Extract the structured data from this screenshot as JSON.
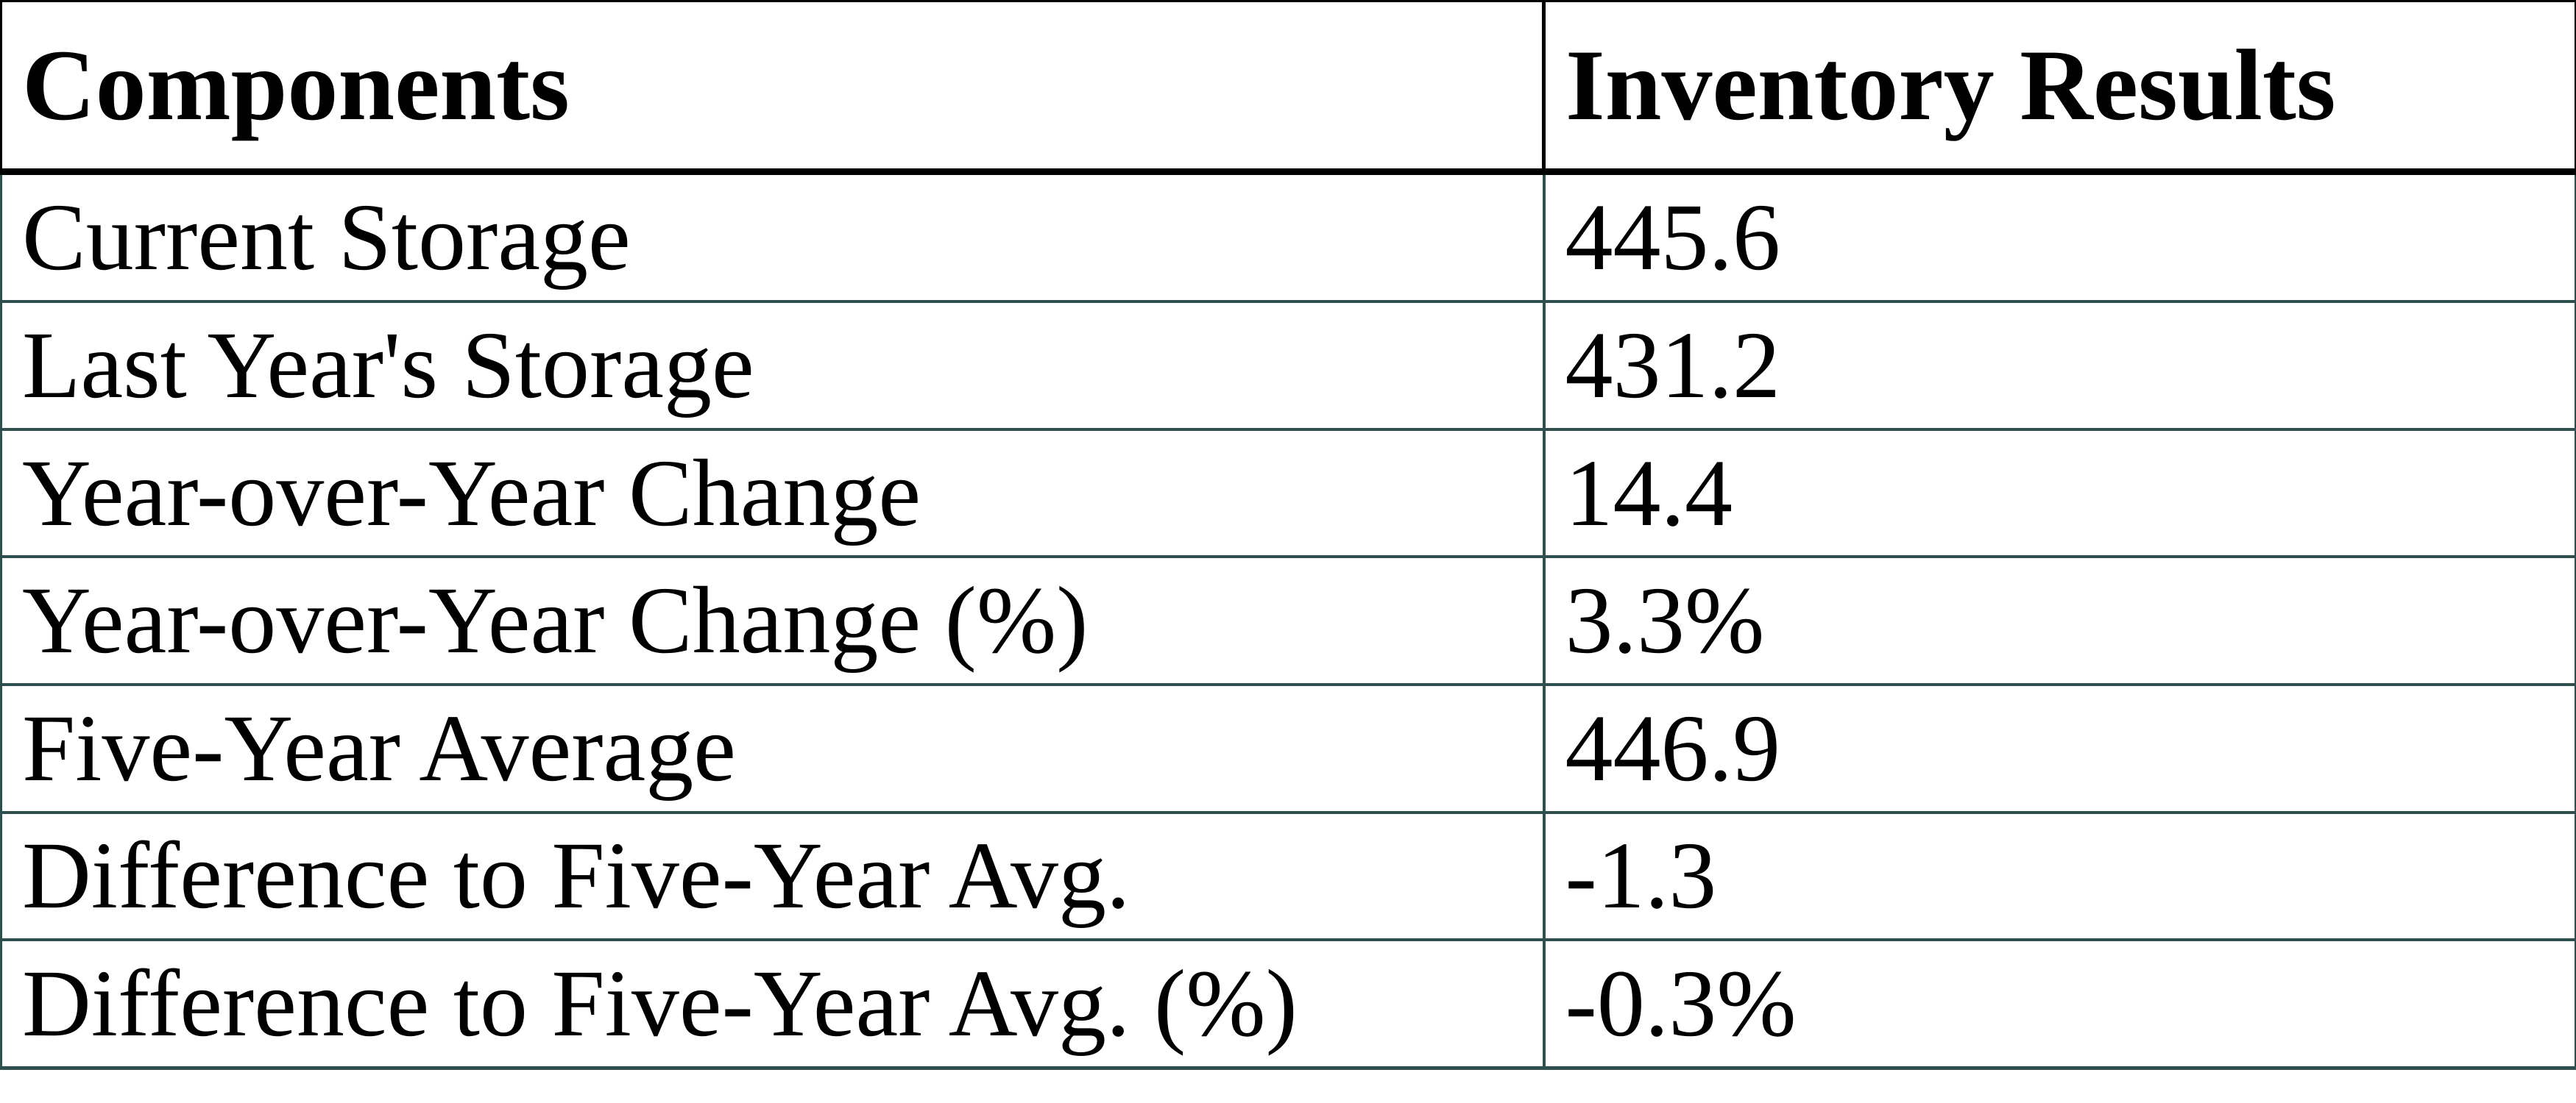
{
  "chart_data": {
    "type": "table",
    "columns": [
      "Components",
      "Inventory Results"
    ],
    "rows": [
      [
        "Current Storage",
        "445.6"
      ],
      [
        "Last Year's Storage",
        "431.2"
      ],
      [
        "Year-over-Year Change",
        "14.4"
      ],
      [
        "Year-over-Year Change (%)",
        "3.3%"
      ],
      [
        "Five-Year Average",
        "446.9"
      ],
      [
        "Difference to Five-Year Avg.",
        "-1.3"
      ],
      [
        "Difference to Five-Year Avg. (%)",
        "-0.3%"
      ]
    ],
    "layout": {
      "grid": "on",
      "header_style": "bold"
    },
    "colors": {
      "header_border": "#000000",
      "body_border": "#2F4F4F",
      "text": "#000000",
      "background": "#FFFFFF"
    }
  }
}
